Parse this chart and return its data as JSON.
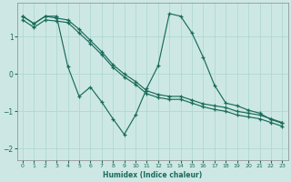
{
  "xlabel": "Humidex (Indice chaleur)",
  "xlim": [
    -0.5,
    23.5
  ],
  "ylim": [
    -2.3,
    1.9
  ],
  "background_color": "#cde8e4",
  "grid_color": "#b0d8d4",
  "line_color": "#1a6b5a",
  "x_ticks": [
    0,
    1,
    2,
    3,
    4,
    5,
    6,
    7,
    8,
    9,
    10,
    11,
    12,
    13,
    14,
    15,
    16,
    17,
    18,
    19,
    20,
    21,
    22,
    23
  ],
  "y_ticks": [
    -2,
    -1,
    0,
    1
  ],
  "line1_x": [
    0,
    1,
    2,
    3,
    4,
    5,
    6,
    7,
    8,
    9,
    10,
    11,
    12,
    13,
    14,
    15,
    16,
    17,
    18,
    19,
    20,
    21,
    22,
    23
  ],
  "line1_y": [
    1.55,
    1.35,
    1.55,
    1.5,
    1.45,
    1.2,
    0.9,
    0.6,
    0.25,
    0.0,
    -0.2,
    -0.45,
    -0.55,
    -0.6,
    -0.6,
    -0.7,
    -0.8,
    -0.85,
    -0.9,
    -1.0,
    -1.05,
    -1.1,
    -1.2,
    -1.3
  ],
  "line2_x": [
    0,
    1,
    2,
    3,
    4,
    5,
    6,
    7,
    8,
    9,
    10,
    11,
    12,
    13,
    14,
    15,
    16,
    17,
    18,
    19,
    20,
    21,
    22,
    23
  ],
  "line2_y": [
    1.45,
    1.25,
    1.45,
    1.42,
    1.38,
    1.1,
    0.82,
    0.52,
    0.18,
    -0.08,
    -0.28,
    -0.53,
    -0.63,
    -0.68,
    -0.68,
    -0.78,
    -0.88,
    -0.95,
    -1.0,
    -1.1,
    -1.15,
    -1.2,
    -1.3,
    -1.4
  ],
  "line3_x": [
    0,
    1,
    2,
    3,
    4,
    5,
    6,
    7,
    8,
    9,
    10,
    11,
    12,
    13,
    14,
    15,
    16,
    17,
    18,
    19,
    20,
    21,
    22,
    23
  ],
  "line3_y": [
    1.55,
    1.35,
    1.55,
    1.55,
    0.2,
    -0.6,
    -0.35,
    -0.75,
    -1.2,
    -1.62,
    -1.1,
    -0.38,
    0.22,
    1.62,
    1.55,
    1.1,
    0.45,
    -0.3,
    -0.78,
    -0.85,
    -0.97,
    -1.05,
    -1.22,
    -1.32
  ]
}
